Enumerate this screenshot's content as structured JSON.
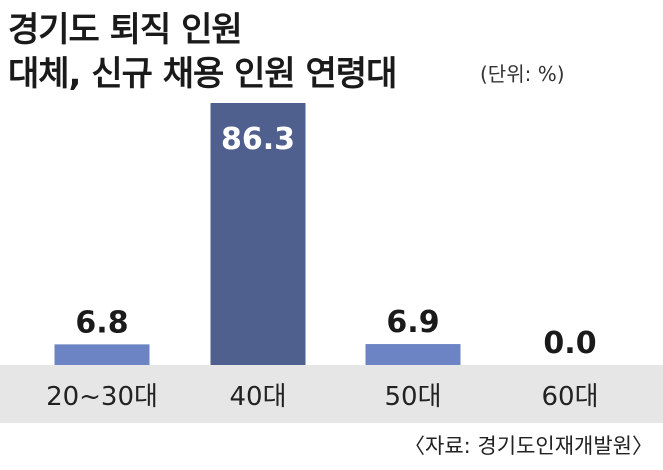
{
  "header": {
    "title_line1": "경기도 퇴직 인원",
    "title_line2": "대체, 신규 채용 인원 연령대",
    "unit": "(단위: %)"
  },
  "source": "〈자료: 경기도인재개발원〉",
  "colors": {
    "bar_light": "#6c84c4",
    "bar_dark": "#4f5f8e",
    "label_on_dark": "#ffffff",
    "label_default": "#1a1a1a",
    "axis_band": "#e6e6e6"
  },
  "chart_data": {
    "type": "bar",
    "categories": [
      "20~30대",
      "40대",
      "50대",
      "60대"
    ],
    "values": [
      6.8,
      86.3,
      6.9,
      0.0
    ],
    "value_labels": [
      "6.8",
      "86.3",
      "6.9",
      "0.0"
    ],
    "highlight_index": 1,
    "title": "경기도 퇴직 인원 대체, 신규 채용 인원 연령대",
    "ylabel": "",
    "xlabel": "",
    "ylim": [
      0,
      86.3
    ],
    "grid": false,
    "legend": "none"
  }
}
